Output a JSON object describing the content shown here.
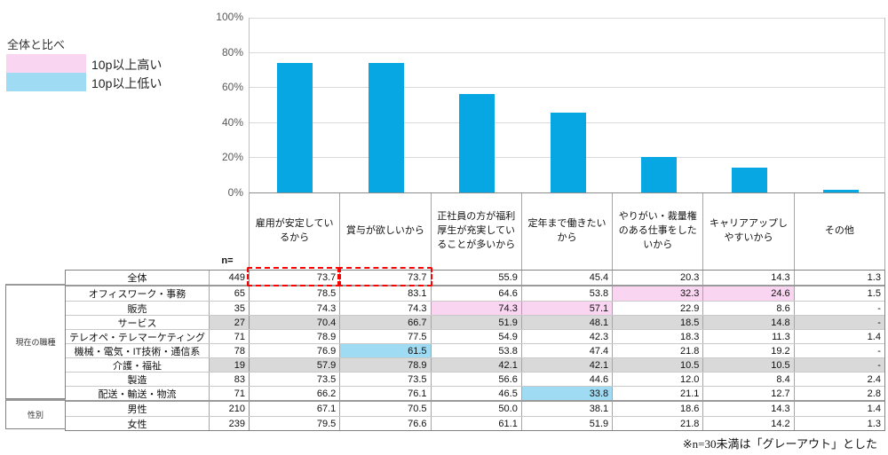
{
  "colors": {
    "bar": "#06A7E2",
    "pink": "#FAD5F2",
    "blue": "#A0DBF4",
    "gray": "#D9D9D9",
    "red": "#FF0000"
  },
  "legend": {
    "title": "全体と比べ",
    "items": [
      {
        "name": "higher",
        "label": "10p以上高い",
        "color": "#FAD5F2"
      },
      {
        "name": "lower",
        "label": "10p以上低い",
        "color": "#A0DBF4"
      }
    ]
  },
  "chart_data": {
    "type": "bar",
    "title": "",
    "categories": [
      "雇用が安定しているから",
      "賞与が欲しいから",
      "正社員の方が福利厚生が充実していることが多いから",
      "定年まで働きたいから",
      "やりがい・裁量権のある仕事をしたいから",
      "キャリアアップしやすいから",
      "その他"
    ],
    "values": [
      73.7,
      73.7,
      55.9,
      45.4,
      20.3,
      14.3,
      1.3
    ],
    "xlabel": "",
    "ylabel": "",
    "ylim": [
      0,
      100
    ],
    "ytick_labels": [
      "0%",
      "20%",
      "40%",
      "60%",
      "80%",
      "100%"
    ],
    "grid": true,
    "bar_color": "#06A7E2",
    "legend_position": "top-left"
  },
  "table": {
    "n_header": "n=",
    "columns": [
      "雇用が安定しているから",
      "賞与が欲しいから",
      "正社員の方が福利厚生が充実していることが多いから",
      "定年まで働きたいから",
      "やりがい・裁量権のある仕事をしたいから",
      "キャリアアップしやすいから",
      "その他"
    ],
    "groups": [
      {
        "label": "現在の職種",
        "rows": [
          1,
          8
        ]
      },
      {
        "label": "性別",
        "rows": [
          9,
          10
        ]
      }
    ],
    "rows": [
      {
        "label": "全体",
        "n": "449",
        "values": [
          "73.7",
          "73.7",
          "55.9",
          "45.4",
          "20.3",
          "14.3",
          "1.3"
        ],
        "styles": [
          "",
          "",
          "",
          "",
          "",
          "",
          ""
        ],
        "gray": false,
        "group_start": false,
        "red_outline": [
          0,
          1
        ]
      },
      {
        "label": "オフィスワーク・事務",
        "n": "65",
        "values": [
          "78.5",
          "83.1",
          "64.6",
          "53.8",
          "32.3",
          "24.6",
          "1.5"
        ],
        "styles": [
          "",
          "",
          "",
          "",
          "pink",
          "pink",
          ""
        ],
        "gray": false,
        "group_start": true,
        "red_outline": []
      },
      {
        "label": "販売",
        "n": "35",
        "values": [
          "74.3",
          "74.3",
          "74.3",
          "57.1",
          "22.9",
          "8.6",
          "-"
        ],
        "styles": [
          "",
          "",
          "pink",
          "pink",
          "",
          "",
          ""
        ],
        "gray": false,
        "group_start": false,
        "red_outline": []
      },
      {
        "label": "サービス",
        "n": "27",
        "values": [
          "70.4",
          "66.7",
          "51.9",
          "48.1",
          "18.5",
          "14.8",
          "-"
        ],
        "styles": [
          "",
          "",
          "",
          "",
          "",
          "",
          ""
        ],
        "gray": true,
        "group_start": false,
        "red_outline": []
      },
      {
        "label": "テレオペ・テレマーケティング",
        "n": "71",
        "values": [
          "78.9",
          "77.5",
          "54.9",
          "42.3",
          "18.3",
          "11.3",
          "1.4"
        ],
        "styles": [
          "",
          "",
          "",
          "",
          "",
          "",
          ""
        ],
        "gray": false,
        "group_start": false,
        "red_outline": []
      },
      {
        "label": "機械・電気・IT技術・通信系",
        "n": "78",
        "values": [
          "76.9",
          "61.5",
          "53.8",
          "47.4",
          "21.8",
          "19.2",
          "-"
        ],
        "styles": [
          "",
          "blue",
          "",
          "",
          "",
          "",
          ""
        ],
        "gray": false,
        "group_start": false,
        "red_outline": []
      },
      {
        "label": "介護・福祉",
        "n": "19",
        "values": [
          "57.9",
          "78.9",
          "42.1",
          "42.1",
          "10.5",
          "10.5",
          "-"
        ],
        "styles": [
          "",
          "",
          "",
          "",
          "",
          "",
          ""
        ],
        "gray": true,
        "group_start": false,
        "red_outline": []
      },
      {
        "label": "製造",
        "n": "83",
        "values": [
          "73.5",
          "73.5",
          "56.6",
          "44.6",
          "12.0",
          "8.4",
          "2.4"
        ],
        "styles": [
          "",
          "",
          "",
          "",
          "",
          "",
          ""
        ],
        "gray": false,
        "group_start": false,
        "red_outline": []
      },
      {
        "label": "配送・輸送・物流",
        "n": "71",
        "values": [
          "66.2",
          "76.1",
          "46.5",
          "33.8",
          "21.1",
          "12.7",
          "2.8"
        ],
        "styles": [
          "",
          "",
          "",
          "blue",
          "",
          "",
          ""
        ],
        "gray": false,
        "group_start": false,
        "red_outline": []
      },
      {
        "label": "男性",
        "n": "210",
        "values": [
          "67.1",
          "70.5",
          "50.0",
          "38.1",
          "18.6",
          "14.3",
          "1.4"
        ],
        "styles": [
          "",
          "",
          "",
          "",
          "",
          "",
          ""
        ],
        "gray": false,
        "group_start": true,
        "red_outline": []
      },
      {
        "label": "女性",
        "n": "239",
        "values": [
          "79.5",
          "76.6",
          "61.1",
          "51.9",
          "21.8",
          "14.2",
          "1.3"
        ],
        "styles": [
          "",
          "",
          "",
          "",
          "",
          "",
          ""
        ],
        "gray": false,
        "group_start": false,
        "red_outline": []
      }
    ]
  },
  "footnote": "※n=30未満は「グレーアウト」とした"
}
